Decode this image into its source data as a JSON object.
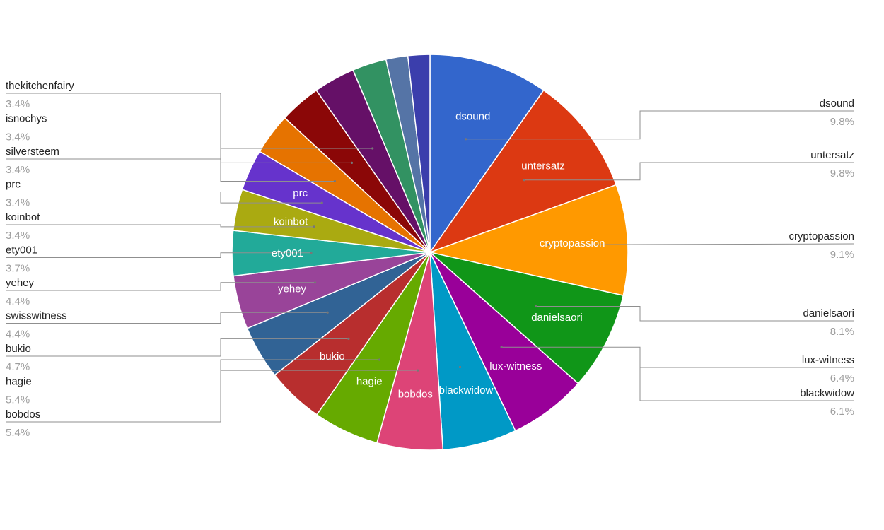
{
  "chart_data": {
    "type": "pie",
    "title": "",
    "start_angle_deg": 0,
    "direction": "clockwise",
    "slices": [
      {
        "label": "dsound",
        "value": 9.8,
        "percent_label": "9.8%",
        "color": "#3366cc",
        "inside_label": "dsound",
        "legend_side": "right"
      },
      {
        "label": "untersatz",
        "value": 9.8,
        "percent_label": "9.8%",
        "color": "#dc3912",
        "inside_label": "untersatz",
        "legend_side": "right"
      },
      {
        "label": "cryptopassion",
        "value": 9.1,
        "percent_label": "9.1%",
        "color": "#ff9900",
        "inside_label": "cryptopassion",
        "legend_side": "right"
      },
      {
        "label": "danielsaori",
        "value": 8.1,
        "percent_label": "8.1%",
        "color": "#109618",
        "inside_label": "danielsaori",
        "legend_side": "right"
      },
      {
        "label": "lux-witness",
        "value": 6.4,
        "percent_label": "6.4%",
        "color": "#990099",
        "inside_label": "lux-witness",
        "legend_side": "right"
      },
      {
        "label": "blackwidow",
        "value": 6.1,
        "percent_label": "6.1%",
        "color": "#0099c6",
        "inside_label": "blackwidow",
        "legend_side": "right"
      },
      {
        "label": "bobdos",
        "value": 5.4,
        "percent_label": "5.4%",
        "color": "#dd4477",
        "inside_label": "bobdos",
        "legend_side": "left"
      },
      {
        "label": "hagie",
        "value": 5.4,
        "percent_label": "5.4%",
        "color": "#66aa00",
        "inside_label": "hagie",
        "legend_side": "left"
      },
      {
        "label": "bukio",
        "value": 4.7,
        "percent_label": "4.7%",
        "color": "#b82e2e",
        "inside_label": "bukio",
        "legend_side": "left"
      },
      {
        "label": "swisswitness",
        "value": 4.4,
        "percent_label": "4.4%",
        "color": "#316395",
        "inside_label": "",
        "legend_side": "left"
      },
      {
        "label": "yehey",
        "value": 4.4,
        "percent_label": "4.4%",
        "color": "#994499",
        "inside_label": "yehey",
        "legend_side": "left"
      },
      {
        "label": "ety001",
        "value": 3.7,
        "percent_label": "3.7%",
        "color": "#22aa99",
        "inside_label": "ety001",
        "legend_side": "left"
      },
      {
        "label": "koinbot",
        "value": 3.4,
        "percent_label": "3.4%",
        "color": "#aaaa11",
        "inside_label": "koinbot",
        "legend_side": "left"
      },
      {
        "label": "prc",
        "value": 3.4,
        "percent_label": "3.4%",
        "color": "#6633cc",
        "inside_label": "prc",
        "legend_side": "left"
      },
      {
        "label": "silversteem",
        "value": 3.4,
        "percent_label": "3.4%",
        "color": "#e67300",
        "inside_label": "",
        "legend_side": "left"
      },
      {
        "label": "isnochys",
        "value": 3.4,
        "percent_label": "3.4%",
        "color": "#8b0707",
        "inside_label": "",
        "legend_side": "left"
      },
      {
        "label": "thekitchenfairy",
        "value": 3.4,
        "percent_label": "3.4%",
        "color": "#651067",
        "inside_label": "",
        "legend_side": "left"
      },
      {
        "label": "",
        "value": 2.8,
        "percent_label": "",
        "color": "#329262",
        "inside_label": "",
        "legend_side": ""
      },
      {
        "label": "",
        "value": 1.8,
        "percent_label": "",
        "color": "#5574a6",
        "inside_label": "",
        "legend_side": ""
      },
      {
        "label": "",
        "value": 1.8,
        "percent_label": "",
        "color": "#3b3eac",
        "inside_label": "",
        "legend_side": ""
      }
    ]
  }
}
